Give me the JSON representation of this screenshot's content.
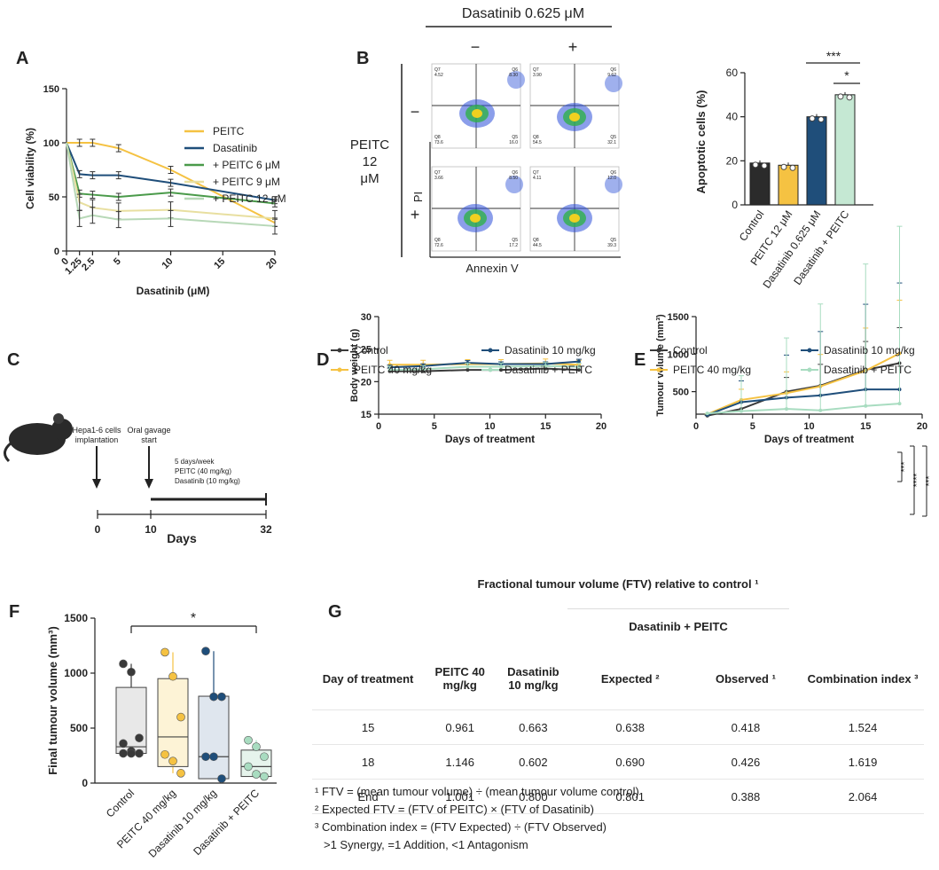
{
  "panel_letters": {
    "a": "A",
    "b": "B",
    "c": "C",
    "d": "D",
    "e": "E",
    "f": "F",
    "g": "G"
  },
  "colors": {
    "peitc": "#f5c242",
    "dasatinib": "#1f4e7a",
    "combo": "#a8dcc0",
    "control": "#3a3a3a",
    "green": "#4a9a4a"
  },
  "chart_data": [
    {
      "id": "A",
      "type": "line",
      "xlabel": "Dasatinib (μM)",
      "ylabel": "Cell viability (%)",
      "xticks": [
        "0",
        "1.25",
        "2.5",
        "5",
        "10",
        "15",
        "20"
      ],
      "yticks": [
        "0",
        "50",
        "100",
        "150"
      ],
      "xlim": [
        0,
        20
      ],
      "ylim": [
        0,
        150
      ],
      "x": [
        0,
        1.25,
        2.5,
        5,
        10,
        20
      ],
      "series": [
        {
          "name": "PEITC",
          "color": "#f5c242",
          "values": [
            100,
            100,
            100,
            95,
            75,
            26
          ]
        },
        {
          "name": "Dasatinib",
          "color": "#1f4e7a",
          "values": [
            100,
            71,
            70,
            70,
            63,
            47
          ]
        },
        {
          "name": "+ PEITC 6 μM",
          "color": "#4a9a4a",
          "values": [
            100,
            53,
            52,
            50,
            54,
            44
          ]
        },
        {
          "name": "+ PEITC 9 μM",
          "color": "#e8dfa0",
          "values": [
            100,
            45,
            40,
            37,
            38,
            30
          ]
        },
        {
          "name": "+ PEITC 12 μM",
          "color": "#b7d8b7",
          "values": [
            100,
            30,
            33,
            29,
            30,
            23
          ]
        }
      ]
    },
    {
      "id": "B",
      "type": "bar",
      "ylabel": "Apoptotic cells (%)",
      "ylim": [
        0,
        60
      ],
      "yticks": [
        "0",
        "20",
        "40",
        "60"
      ],
      "categories": [
        "Control",
        "PEITC 12 μM",
        "Dasatinib 0.625 μM",
        "Dasatinib + PEITC"
      ],
      "values": [
        19,
        18,
        40,
        50
      ],
      "colors": [
        "#2b2b2b",
        "#f5c242",
        "#1f4e7a",
        "#c5e8d3"
      ],
      "sig": [
        "***",
        "*"
      ]
    },
    {
      "id": "D",
      "type": "line",
      "xlabel": "Days of treatment",
      "ylabel": "Body weight (g)",
      "ylim": [
        15,
        30
      ],
      "xlim": [
        0,
        20
      ],
      "xticks": [
        "0",
        "5",
        "10",
        "15",
        "20"
      ],
      "yticks": [
        "15",
        "20",
        "25",
        "30"
      ],
      "x": [
        1,
        4,
        8,
        11,
        15,
        18
      ],
      "series": [
        {
          "name": "Control",
          "color": "#3a3a3a",
          "values": [
            21.6,
            21.6,
            21.8,
            21.8,
            22.0,
            21.8
          ]
        },
        {
          "name": "PEITC 40 mg/kg",
          "color": "#f5c242",
          "values": [
            22.6,
            22.6,
            22.7,
            22.7,
            22.8,
            22.6
          ]
        },
        {
          "name": "Dasatinib 10 mg/kg",
          "color": "#1f4e7a",
          "values": [
            22.2,
            22.4,
            22.9,
            22.7,
            22.7,
            23.1
          ]
        },
        {
          "name": "Dasatinib + PEITC",
          "color": "#a8dcc0",
          "values": [
            21.8,
            21.9,
            22.3,
            22.3,
            22.4,
            22.3
          ]
        }
      ]
    },
    {
      "id": "E",
      "type": "line",
      "xlabel": "Days of treatment",
      "ylabel": "Tumour volume (mm³)",
      "ylim": [
        200,
        1500
      ],
      "xlim": [
        0,
        20
      ],
      "xticks": [
        "0",
        "5",
        "10",
        "15",
        "20"
      ],
      "yticks": [
        "500",
        "1000",
        "1500"
      ],
      "x": [
        1,
        4,
        8,
        11,
        15,
        18
      ],
      "series": [
        {
          "name": "Control",
          "color": "#3a3a3a",
          "values": [
            180,
            270,
            500,
            580,
            790,
            880
          ]
        },
        {
          "name": "PEITC 40 mg/kg",
          "color": "#f5c242",
          "values": [
            200,
            390,
            480,
            570,
            780,
            1010
          ]
        },
        {
          "name": "Dasatinib 10 mg/kg",
          "color": "#1f4e7a",
          "values": [
            190,
            360,
            420,
            450,
            530,
            530
          ]
        },
        {
          "name": "Dasatinib + PEITC",
          "color": "#a8dcc0",
          "values": [
            210,
            240,
            270,
            250,
            310,
            340
          ]
        }
      ],
      "sig": [
        "***",
        "****",
        "***"
      ]
    },
    {
      "id": "F",
      "type": "box",
      "ylabel": "Final tumour volume (mm³)",
      "ylim": [
        0,
        1500
      ],
      "yticks": [
        "0",
        "500",
        "1000",
        "1500"
      ],
      "categories": [
        "Control",
        "PEITC 40 mg/kg",
        "Dasatinib 10 mg/kg",
        "Dasatinib + PEITC"
      ],
      "points": [
        [
          1085,
          1010,
          410,
          360,
          290,
          270,
          270,
          270
        ],
        [
          1190,
          970,
          600,
          260,
          200,
          90
        ],
        [
          1200,
          785,
          785,
          240,
          240,
          40
        ],
        [
          390,
          330,
          240,
          150,
          80,
          60
        ]
      ],
      "box": [
        [
          270,
          870,
          330
        ],
        [
          150,
          950,
          420
        ],
        [
          40,
          790,
          240
        ],
        [
          60,
          300,
          150
        ]
      ],
      "colors": [
        "#3a3a3a",
        "#f5c242",
        "#1f4e7a",
        "#a8dcc0"
      ],
      "fill": [
        "#e8e8e8",
        "#fdf3d6",
        "#dfe6ee",
        "#e6f4ec"
      ],
      "sig": "*"
    }
  ],
  "panelA": {
    "ylabel": "Cell viability (%)",
    "xlabel": "Dasatinib (μM)",
    "legend": [
      "PEITC",
      "Dasatinib",
      "+ PEITC 6 μM",
      "+ PEITC 9 μM",
      "+ PEITC 12 μM"
    ]
  },
  "panelB": {
    "title": "Dasatinib 0.625 μM",
    "minus": "−",
    "plus": "+",
    "row_label_1": "PEITC",
    "row_label_2": "12",
    "row_label_3": "μM",
    "x_axis": "Annexin V",
    "y_axis": "PI",
    "plots": [
      {
        "q7": "Q7",
        "q6": "Q6",
        "q8": "Q8",
        "q5": "Q5",
        "v7": "4.52",
        "v6": "8.30",
        "v8": "73.6",
        "v5": "16.0"
      },
      {
        "q7": "Q7",
        "q6": "Q6",
        "q8": "Q8",
        "q5": "Q5",
        "v7": "3.90",
        "v6": "9.62",
        "v8": "54.5",
        "v5": "32.1"
      },
      {
        "q7": "Q7",
        "q6": "Q6",
        "q8": "Q8",
        "q5": "Q5",
        "v7": "3.66",
        "v6": "8.50",
        "v8": "72.6",
        "v5": "17.2"
      },
      {
        "q7": "Q7",
        "q6": "Q6",
        "q8": "Q8",
        "q5": "Q5",
        "v7": "4.11",
        "v6": "12.0",
        "v8": "44.5",
        "v5": "39.3"
      }
    ]
  },
  "panelC": {
    "label1": "Hepa1-6 cells",
    "label1b": "implantation",
    "label2": "Oral gavage",
    "label2b": "start",
    "regimen1": "5 days/week",
    "regimen2": "PEITC (40 mg/kg)",
    "regimen3": "Dasatinib (10 mg/kg)",
    "t0": "0",
    "t10": "10",
    "t32": "32",
    "xlabel": "Days"
  },
  "panelG": {
    "caption": "Fractional tumour volume (FTV) relative to control ¹",
    "group": "Dasatinib + PEITC",
    "headers": [
      "Day of treatment",
      "PEITC 40 mg/kg",
      "Dasatinib 10 mg/kg",
      "Expected ²",
      "Observed ¹",
      "Combination index ³"
    ],
    "rows": [
      [
        "15",
        "0.961",
        "0.663",
        "0.638",
        "0.418",
        "1.524"
      ],
      [
        "18",
        "1.146",
        "0.602",
        "0.690",
        "0.426",
        "1.619"
      ],
      [
        "End",
        "1.001",
        "0.800",
        "0.801",
        "0.388",
        "2.064"
      ]
    ],
    "notes": [
      "¹ FTV = (mean tumour volume) ÷ (mean tumour volume control)",
      "² Expected FTV = (FTV of PEITC) × (FTV of Dasatinib)",
      "³ Combination index = (FTV Expected) ÷ (FTV Observed)",
      "   >1 Synergy, =1 Addition, <1 Antagonism"
    ]
  }
}
